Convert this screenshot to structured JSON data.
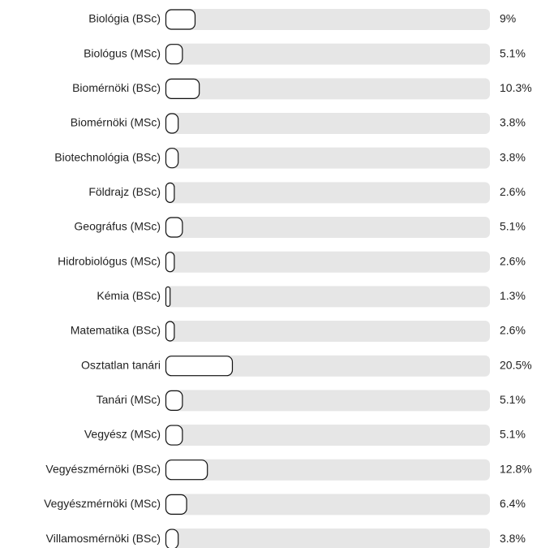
{
  "chart_data": {
    "type": "bar",
    "orientation": "horizontal",
    "categories": [
      "Biológia (BSc)",
      "Biológus (MSc)",
      "Biomérnöki (BSc)",
      "Biomérnöki (MSc)",
      "Biotechnológia (BSc)",
      "Földrajz (BSc)",
      "Geográfus (MSc)",
      "Hidrobiológus (MSc)",
      "Kémia (BSc)",
      "Matematika (BSc)",
      "Osztatlan tanári",
      "Tanári (MSc)",
      "Vegyész (MSc)",
      "Vegyészmérnöki (BSc)",
      "Vegyészmérnöki (MSc)",
      "Villamosmérnöki (BSc)"
    ],
    "values": [
      9,
      5.1,
      10.3,
      3.8,
      3.8,
      2.6,
      5.1,
      2.6,
      1.3,
      2.6,
      20.5,
      5.1,
      5.1,
      12.8,
      6.4,
      3.8
    ],
    "value_labels": [
      "9%",
      "5.1%",
      "10.3%",
      "3.8%",
      "3.8%",
      "2.6%",
      "5.1%",
      "2.6%",
      "1.3%",
      "2.6%",
      "20.5%",
      "5.1%",
      "5.1%",
      "12.8%",
      "6.4%",
      "3.8%"
    ],
    "xlim": [
      0,
      100
    ],
    "color": "#ffffff",
    "track_color": "#e6e6e6"
  }
}
